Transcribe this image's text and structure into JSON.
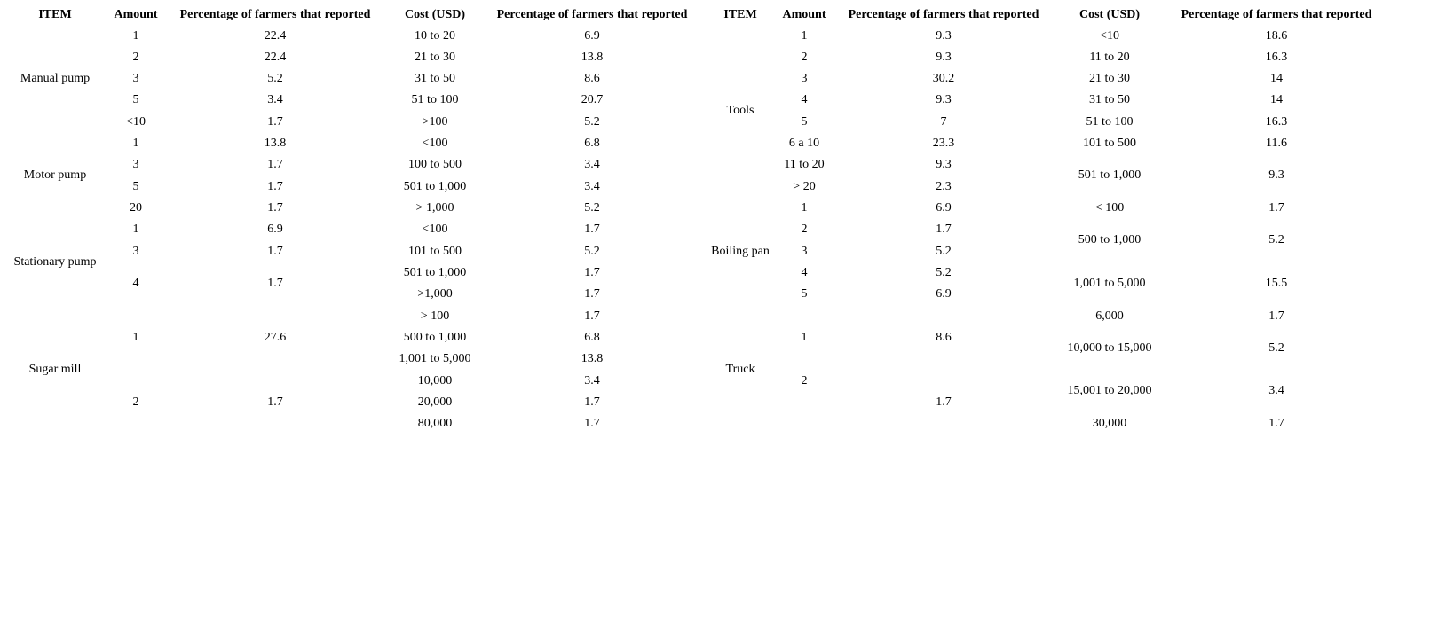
{
  "tables": [
    {
      "headers": [
        "ITEM",
        "Amount",
        "Percentage of farmers that reported",
        "Cost (USD)",
        "Percentage of farmers that reported"
      ],
      "groups": [
        {
          "item": "Manual pump",
          "amounts": [
            {
              "amount": "1",
              "pct": "22.4"
            },
            {
              "amount": "2",
              "pct": "22.4"
            },
            {
              "amount": "3",
              "pct": "5.2"
            },
            {
              "amount": "5",
              "pct": "3.4"
            },
            {
              "amount": "<10",
              "pct": "1.7"
            }
          ],
          "costs": [
            {
              "cost": "10 to 20",
              "pct": "6.9"
            },
            {
              "cost": "21 to 30",
              "pct": "13.8"
            },
            {
              "cost": "31 to 50",
              "pct": "8.6"
            },
            {
              "cost": "51 to 100",
              "pct": "20.7"
            },
            {
              "cost": ">100",
              "pct": "5.2"
            }
          ]
        },
        {
          "item": "Motor pump",
          "amounts": [
            {
              "amount": "1",
              "pct": "13.8"
            },
            {
              "amount": "3",
              "pct": "1.7"
            },
            {
              "amount": "5",
              "pct": "1.7"
            },
            {
              "amount": "20",
              "pct": "1.7"
            }
          ],
          "costs": [
            {
              "cost": "<100",
              "pct": "6.8"
            },
            {
              "cost": "100 to 500",
              "pct": "3.4"
            },
            {
              "cost": "501 to 1,000",
              "pct": "3.4"
            },
            {
              "cost": "> 1,000",
              "pct": "5.2"
            }
          ]
        },
        {
          "item": "Stationary pump",
          "amounts": [
            {
              "amount": "1",
              "pct": "6.9"
            },
            {
              "amount": "3",
              "pct": "1.7"
            },
            {
              "amount": "4",
              "pct": "1.7"
            }
          ],
          "costs": [
            {
              "cost": "<100",
              "pct": "1.7"
            },
            {
              "cost": "101 to 500",
              "pct": "5.2"
            },
            {
              "cost": "501 to 1,000",
              "pct": "1.7"
            },
            {
              "cost": ">1,000",
              "pct": "1.7"
            }
          ]
        },
        {
          "item": "Sugar mill",
          "amounts": [
            {
              "amount": "1",
              "pct": "27.6"
            },
            {
              "amount": "2",
              "pct": "1.7"
            }
          ],
          "costs": [
            {
              "cost": "> 100",
              "pct": "1.7"
            },
            {
              "cost": "500 to 1,000",
              "pct": "6.8"
            },
            {
              "cost": "1,001 to 5,000",
              "pct": "13.8"
            },
            {
              "cost": "10,000",
              "pct": "3.4"
            },
            {
              "cost": "20,000",
              "pct": "1.7"
            },
            {
              "cost": "80,000",
              "pct": "1.7"
            }
          ]
        }
      ]
    },
    {
      "headers": [
        "ITEM",
        "Amount",
        "Percentage of farmers that reported",
        "Cost (USD)",
        "Percentage of farmers that reported"
      ],
      "groups": [
        {
          "item": "Tools",
          "amounts": [
            {
              "amount": "1",
              "pct": "9.3"
            },
            {
              "amount": "2",
              "pct": "9.3"
            },
            {
              "amount": "3",
              "pct": "30.2"
            },
            {
              "amount": "4",
              "pct": "9.3"
            },
            {
              "amount": "5",
              "pct": "7"
            },
            {
              "amount": "6 a 10",
              "pct": "23.3"
            },
            {
              "amount": "11 to 20",
              "pct": "9.3"
            },
            {
              "amount": "> 20",
              "pct": "2.3"
            }
          ],
          "costs": [
            {
              "cost": "<10",
              "pct": "18.6"
            },
            {
              "cost": "11 to 20",
              "pct": "16.3"
            },
            {
              "cost": "21 to 30",
              "pct": "14"
            },
            {
              "cost": "31 to 50",
              "pct": "14"
            },
            {
              "cost": "51 to 100",
              "pct": "16.3"
            },
            {
              "cost": "101 to 500",
              "pct": "11.6"
            },
            {
              "cost": "501 to 1,000",
              "pct": "9.3"
            }
          ]
        },
        {
          "item": "Boiling pan",
          "amounts": [
            {
              "amount": "1",
              "pct": "6.9"
            },
            {
              "amount": "2",
              "pct": "1.7"
            },
            {
              "amount": "3",
              "pct": "5.2"
            },
            {
              "amount": "4",
              "pct": "5.2"
            },
            {
              "amount": "5",
              "pct": "6.9"
            }
          ],
          "costs": [
            {
              "cost": "< 100",
              "pct": "1.7"
            },
            {
              "cost": "500 to 1,000",
              "pct": "5.2"
            },
            {
              "cost": "1,001 to 5,000",
              "pct": "15.5"
            },
            {
              "cost": "6,000",
              "pct": "1.7"
            }
          ]
        },
        {
          "item": "Truck",
          "amounts": [
            {
              "amount": "1",
              "pct": "8.6"
            },
            {
              "amount": "2",
              "pct": "1.7"
            }
          ],
          "costs": [
            {
              "cost": "10,000 to 15,000",
              "pct": "5.2"
            },
            {
              "cost": "15,001 to 20,000",
              "pct": "3.4"
            },
            {
              "cost": "30,000",
              "pct": "1.7"
            }
          ]
        }
      ]
    }
  ]
}
